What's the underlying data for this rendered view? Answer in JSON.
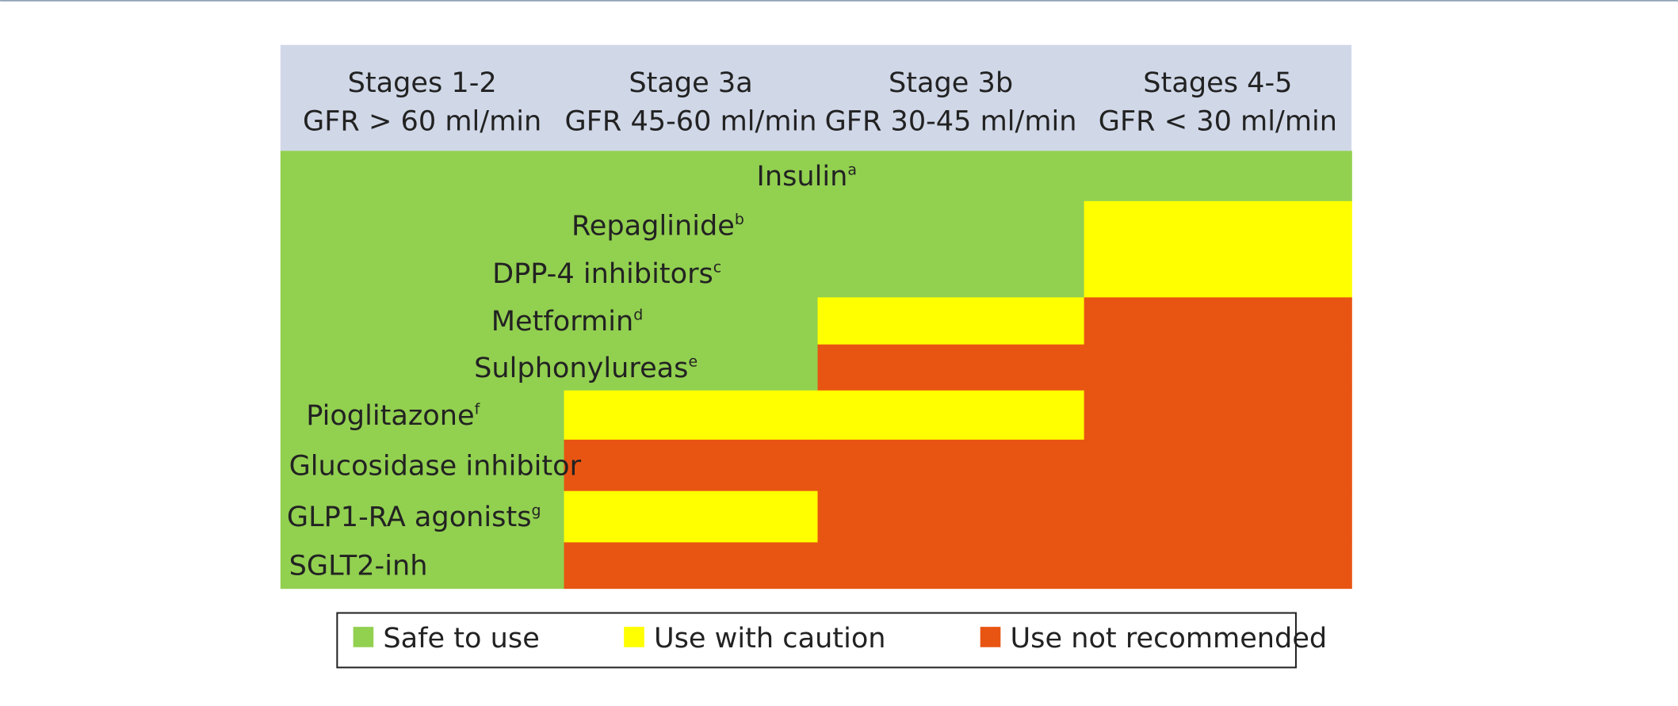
{
  "header": {
    "columns": [
      {
        "stage": "Stages 1-2",
        "gfr": "GFR > 60 ml/min"
      },
      {
        "stage": "Stage 3a",
        "gfr": "GFR 45-60 ml/min"
      },
      {
        "stage": "Stage 3b",
        "gfr": "GFR 30-45 ml/min"
      },
      {
        "stage": "Stages 4-5",
        "gfr": "GFR < 30 ml/min"
      }
    ]
  },
  "rows": [
    {
      "name": "Insulin",
      "note": "a",
      "colors": [
        "#92d050",
        "#92d050",
        "#92d050",
        "#92d050"
      ]
    },
    {
      "name": "Repaglinide",
      "note": "b",
      "colors": [
        "#92d050",
        "#92d050",
        "#92d050",
        "#ffff00"
      ]
    },
    {
      "name": "DPP-4 inhibitors",
      "note": "c",
      "colors": [
        "#92d050",
        "#92d050",
        "#92d050",
        "#ffff00"
      ]
    },
    {
      "name": "Metformin",
      "note": "d",
      "colors": [
        "#92d050",
        "#92d050",
        "#ffff00",
        "#e85512"
      ]
    },
    {
      "name": "Sulphonylureas",
      "note": "e",
      "colors": [
        "#92d050",
        "#92d050",
        "#e85512",
        "#e85512"
      ]
    },
    {
      "name": "Pioglitazone",
      "note": "f",
      "colors": [
        "#92d050",
        "#ffff00",
        "#ffff00",
        "#e85512"
      ]
    },
    {
      "name": "Glucosidase inhibitor",
      "colors": [
        "#92d050",
        "#e85512",
        "#e85512",
        "#e85512"
      ]
    },
    {
      "name": "GLP1-RA agonists",
      "note": "g",
      "colors": [
        "#92d050",
        "#ffff00",
        "#e85512",
        "#e85512"
      ]
    },
    {
      "name": "SGLT2-inh",
      "colors": [
        "#92d050",
        "#e85512",
        "#e85512",
        "#e85512"
      ]
    }
  ],
  "legend": [
    {
      "label": "Safe to use",
      "color": "#92d050"
    },
    {
      "label": "Use with caution",
      "color": "#ffff00"
    },
    {
      "label": "Use not recommended",
      "color": "#e85512"
    }
  ]
}
